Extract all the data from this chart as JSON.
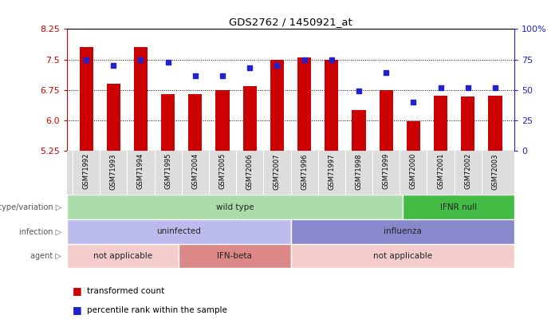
{
  "title": "GDS2762 / 1450921_at",
  "samples": [
    "GSM71992",
    "GSM71993",
    "GSM71994",
    "GSM71995",
    "GSM72004",
    "GSM72005",
    "GSM72006",
    "GSM72007",
    "GSM71996",
    "GSM71997",
    "GSM71998",
    "GSM71999",
    "GSM72000",
    "GSM72001",
    "GSM72002",
    "GSM72003"
  ],
  "bar_values": [
    7.8,
    6.9,
    7.8,
    6.65,
    6.65,
    6.75,
    6.85,
    7.5,
    7.55,
    7.5,
    6.25,
    6.75,
    5.98,
    6.62,
    6.6,
    6.62
  ],
  "dot_values": [
    75,
    70,
    75,
    73,
    62,
    62,
    68,
    70,
    75,
    75,
    49,
    64,
    40,
    52,
    52,
    52
  ],
  "ylim_left": [
    5.25,
    8.25
  ],
  "ylim_right": [
    0,
    100
  ],
  "yticks_left": [
    5.25,
    6.0,
    6.75,
    7.5,
    8.25
  ],
  "yticks_right": [
    0,
    25,
    50,
    75,
    100
  ],
  "ytick_labels_right": [
    "0",
    "25",
    "50",
    "75",
    "100%"
  ],
  "bar_color": "#cc0000",
  "dot_color": "#2222cc",
  "bar_baseline": 5.25,
  "genotype_variation": [
    {
      "label": "wild type",
      "start": 0,
      "end": 12,
      "color": "#aaddaa"
    },
    {
      "label": "IFNR null",
      "start": 12,
      "end": 16,
      "color": "#44bb44"
    }
  ],
  "infection": [
    {
      "label": "uninfected",
      "start": 0,
      "end": 8,
      "color": "#bbbbee"
    },
    {
      "label": "influenza",
      "start": 8,
      "end": 16,
      "color": "#8888cc"
    }
  ],
  "agent": [
    {
      "label": "not applicable",
      "start": 0,
      "end": 4,
      "color": "#f5cccc"
    },
    {
      "label": "IFN-beta",
      "start": 4,
      "end": 8,
      "color": "#dd8888"
    },
    {
      "label": "not applicable",
      "start": 8,
      "end": 16,
      "color": "#f5cccc"
    }
  ],
  "row_labels": [
    "genotype/variation",
    "infection",
    "agent"
  ],
  "legend_bar_label": "transformed count",
  "legend_dot_label": "percentile rank within the sample",
  "left_axis_color": "#cc0000",
  "right_axis_color": "#2222cc",
  "xtick_bg": "#dddddd"
}
